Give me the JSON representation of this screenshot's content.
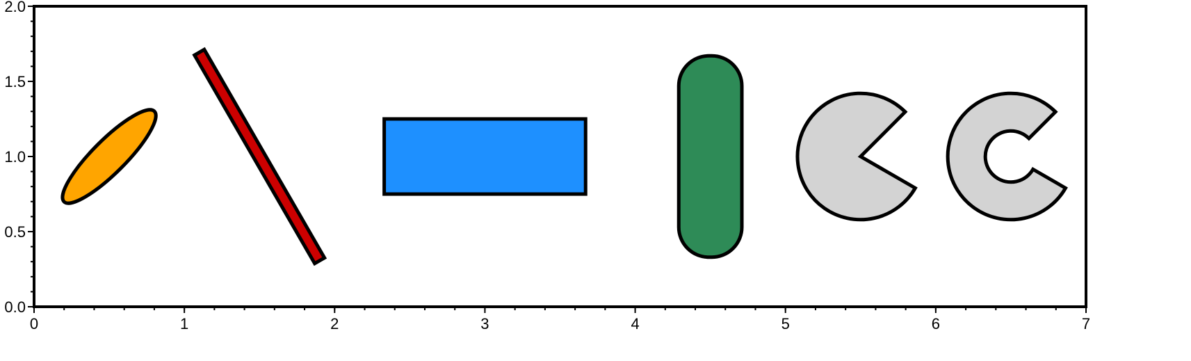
{
  "chart_data": {
    "type": "scatter",
    "title": "",
    "xlabel": "",
    "ylabel": "",
    "xlim": [
      0,
      7
    ],
    "ylim": [
      0,
      2
    ],
    "grid": false,
    "x_ticks": [
      "0",
      "1",
      "2",
      "3",
      "4",
      "5",
      "6",
      "7"
    ],
    "y_ticks": [
      "0.0",
      "0.5",
      "1.0",
      "1.5",
      "2.0"
    ],
    "minor_tick_interval_x": 0.2,
    "minor_tick_interval_y": 0.1,
    "shapes": [
      {
        "kind": "ellipse",
        "x": 0.5,
        "y": 1.0,
        "angle_deg": 45,
        "major_axis": 0.85,
        "minor_axis": 0.22,
        "fill": "#ffa500",
        "stroke": "#000000"
      },
      {
        "kind": "rotated-rectangle",
        "x": 1.5,
        "y": 1.0,
        "angle_deg": -60,
        "length": 1.6,
        "width": 0.075,
        "fill": "#cc0000",
        "stroke": "#000000"
      },
      {
        "kind": "rectangle",
        "x": 3.0,
        "y": 1.0,
        "width": 1.34,
        "height": 0.5,
        "fill": "#1e90ff",
        "stroke": "#000000"
      },
      {
        "kind": "rounded-rectangle",
        "x": 4.5,
        "y": 1.0,
        "width": 0.42,
        "height": 1.34,
        "corner_radius": 0.2,
        "fill": "#2e8b57",
        "stroke": "#000000"
      },
      {
        "kind": "wedge",
        "x": 5.5,
        "y": 1.0,
        "outer_radius": 0.42,
        "inner_radius": 0,
        "start_angle_deg": -30,
        "end_angle_deg": 45,
        "fill": "#d3d3d3",
        "stroke": "#000000"
      },
      {
        "kind": "ring-wedge",
        "x": 6.5,
        "y": 1.0,
        "outer_radius": 0.42,
        "inner_radius": 0.17,
        "start_angle_deg": -30,
        "end_angle_deg": 45,
        "fill": "#d3d3d3",
        "stroke": "#000000"
      }
    ]
  }
}
